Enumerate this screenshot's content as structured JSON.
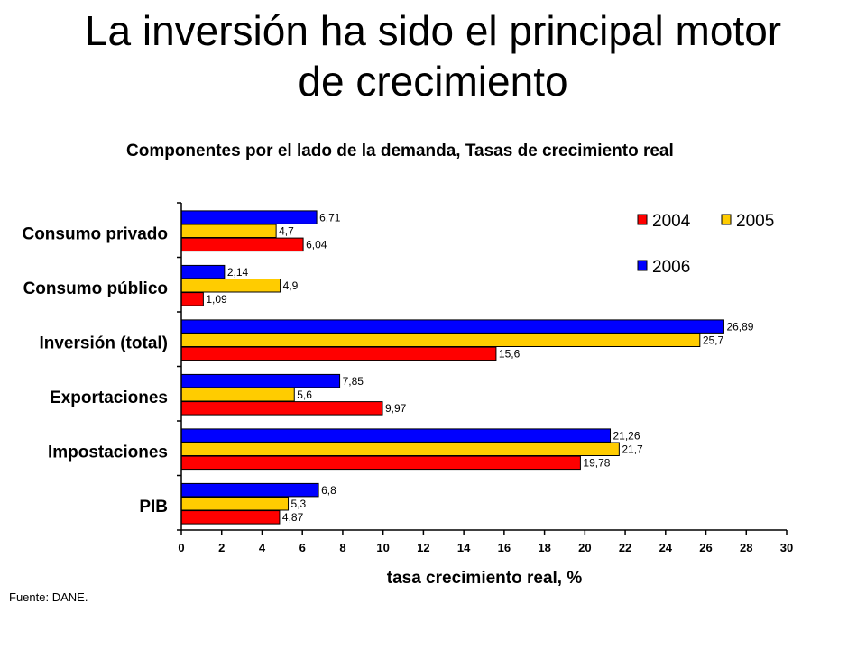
{
  "title_lines": [
    "La inversión ha sido el principal motor",
    "de crecimiento"
  ],
  "source": "Fuente: DANE.",
  "colors": {
    "2004": "#ff0000",
    "2005": "#ffcc00",
    "2006": "#0000ff"
  },
  "chart_data": {
    "type": "bar",
    "orientation": "horizontal",
    "title": "Componentes por el lado de la demanda, Tasas de crecimiento real",
    "xlabel": "tasa crecimiento real, %",
    "ylabel": "",
    "xlim": [
      0,
      30
    ],
    "xticks": [
      0,
      2,
      4,
      6,
      8,
      10,
      12,
      14,
      16,
      18,
      20,
      22,
      24,
      26,
      28,
      30
    ],
    "grid": false,
    "legend_position": "top-right",
    "categories": [
      "Consumo privado",
      "Consumo público",
      "Inversión (total)",
      "Exportaciones",
      "Impostaciones",
      "PIB"
    ],
    "series": [
      {
        "name": "2006",
        "values": [
          6.71,
          2.14,
          26.89,
          7.85,
          21.26,
          6.8
        ],
        "labels": [
          "6,71",
          "2,14",
          "26,89",
          "7,85",
          "21,26",
          "6,8"
        ]
      },
      {
        "name": "2005",
        "values": [
          4.7,
          4.9,
          25.7,
          5.6,
          21.7,
          5.3
        ],
        "labels": [
          "4,7",
          "4,9",
          "25,7",
          "5,6",
          "21,7",
          "5,3"
        ]
      },
      {
        "name": "2004",
        "values": [
          6.04,
          1.09,
          15.6,
          9.97,
          19.78,
          4.87
        ],
        "labels": [
          "6,04",
          "1,09",
          "15,6",
          "9,97",
          "19,78",
          "4,87"
        ]
      }
    ],
    "legend_order": [
      "2004",
      "2005",
      "2006"
    ]
  }
}
